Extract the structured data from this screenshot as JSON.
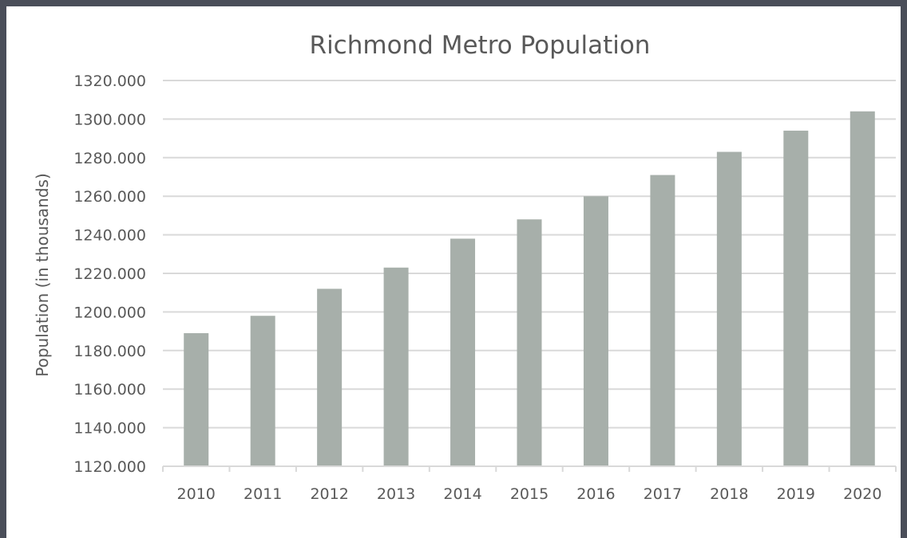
{
  "chart_data": {
    "type": "bar",
    "title": "Richmond Metro Population",
    "xlabel": "",
    "ylabel": "Population (in thousands)",
    "categories": [
      "2010",
      "2011",
      "2012",
      "2013",
      "2014",
      "2015",
      "2016",
      "2017",
      "2018",
      "2019",
      "2020"
    ],
    "values": [
      1189,
      1198,
      1212,
      1223,
      1238,
      1248,
      1260,
      1271,
      1283,
      1294,
      1304
    ],
    "ylim": [
      1120,
      1320
    ],
    "yticks": [
      "1120.000",
      "1140.000",
      "1160.000",
      "1180.000",
      "1200.000",
      "1220.000",
      "1240.000",
      "1260.000",
      "1280.000",
      "1300.000",
      "1320.000"
    ],
    "grid": true,
    "legend": "none",
    "colors": {
      "bar": "#a7afaa",
      "grid": "#d9d9d9",
      "text": "#595959",
      "border": "#4a4e59"
    }
  }
}
